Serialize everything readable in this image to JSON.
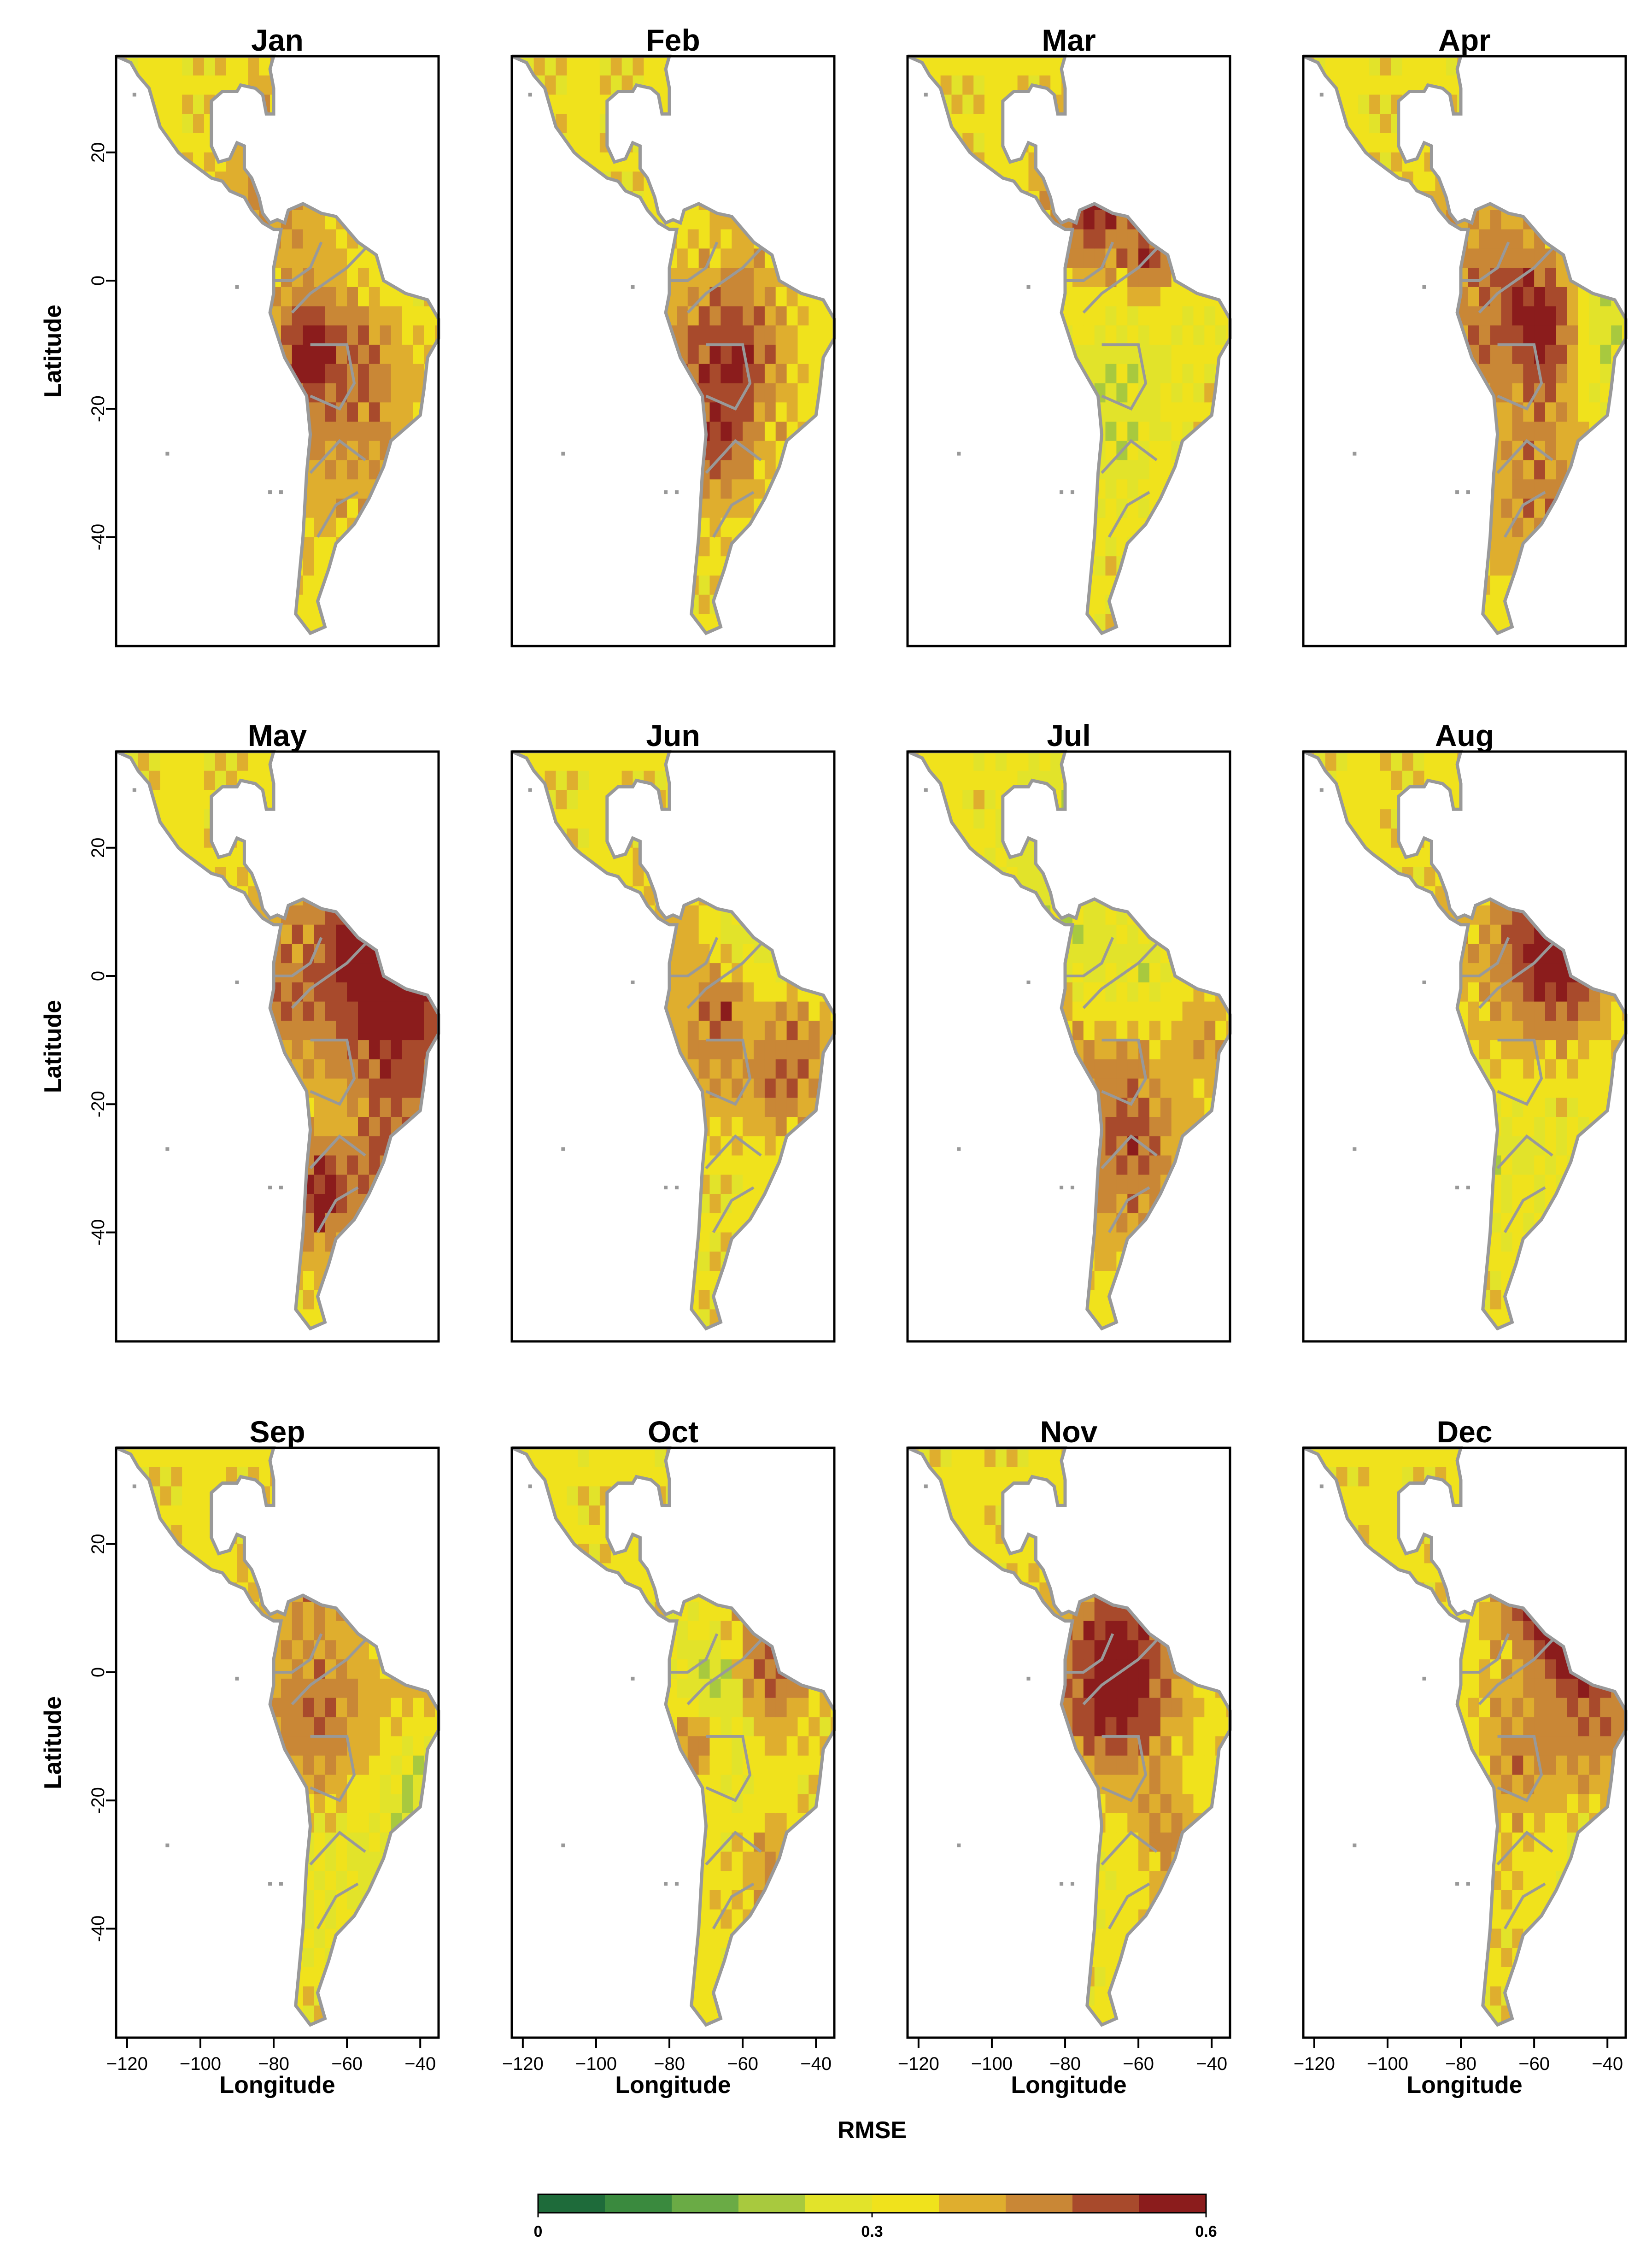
{
  "chart_data": {
    "type": "heatmap",
    "panels": [
      "Jan",
      "Feb",
      "Mar",
      "Apr",
      "May",
      "Jun",
      "Jul",
      "Aug",
      "Sep",
      "Oct",
      "Nov",
      "Dec"
    ],
    "xlabel": "Longitude",
    "ylabel": "Latitude",
    "xlim": [
      -123,
      -35
    ],
    "ylim": [
      -57,
      35
    ],
    "xticks": [
      "-120",
      "-100",
      "-80",
      "-60",
      "-40"
    ],
    "xtick_values": [
      -120,
      -100,
      -80,
      -60,
      -40
    ],
    "yticks": [
      "20",
      "0",
      "-20",
      "-40"
    ],
    "ytick_values": [
      20,
      0,
      -20,
      -40
    ],
    "colorbar": {
      "title": "RMSE",
      "min": 0,
      "max": 0.6,
      "tick_labels": [
        "0",
        "0.3",
        "0.6"
      ],
      "tick_values": [
        0,
        0.3,
        0.6
      ],
      "colors": [
        "#1e6b3a",
        "#3a8a3e",
        "#6aab45",
        "#a8c93e",
        "#e2e32a",
        "#f0e21c",
        "#dfae2e",
        "#c98736",
        "#a84a2c",
        "#8b1c1c"
      ]
    }
  }
}
